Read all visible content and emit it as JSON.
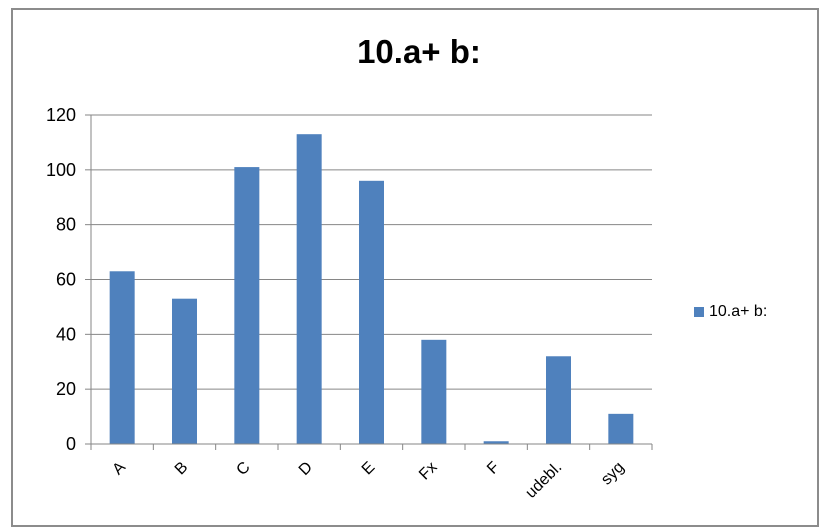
{
  "chart_data": {
    "type": "bar",
    "title": "10.a+ b:",
    "categories": [
      "A",
      "B",
      "C",
      "D",
      "E",
      "Fx",
      "F",
      "udebl.",
      "syg"
    ],
    "series": [
      {
        "name": "10.a+ b:",
        "values": [
          63,
          53,
          101,
          113,
          96,
          38,
          1,
          32,
          11
        ],
        "color": "#4f81bd"
      }
    ],
    "ylim": [
      0,
      120
    ],
    "yticks": [
      "0",
      "20",
      "40",
      "60",
      "80",
      "100",
      "120"
    ],
    "xlabel": "",
    "ylabel": "",
    "grid": true,
    "legend_position": "right"
  }
}
